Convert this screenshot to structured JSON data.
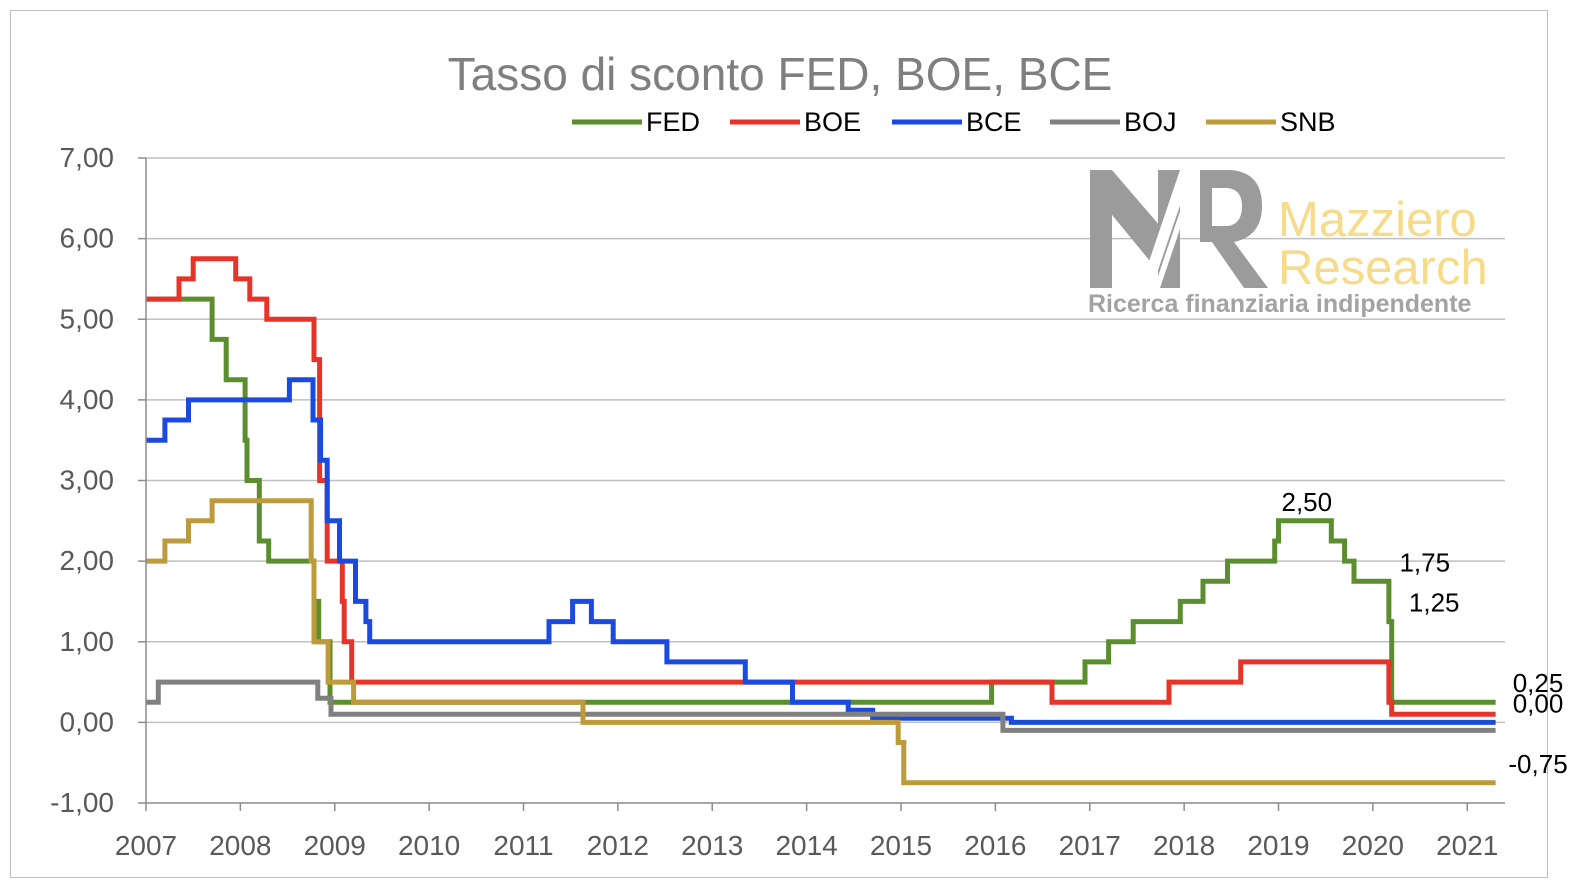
{
  "chart_data": {
    "type": "line",
    "step": true,
    "title": "Tasso di sconto FED, BOE, BCE",
    "xlabel": "",
    "ylabel": "",
    "xlim": [
      2007.0,
      2021.4
    ],
    "ylim": [
      -1.0,
      7.0
    ],
    "ytick_values": [
      -1,
      0,
      1,
      2,
      3,
      4,
      5,
      6,
      7
    ],
    "ytick_labels": [
      "-1,00",
      "0,00",
      "1,00",
      "2,00",
      "3,00",
      "4,00",
      "5,00",
      "6,00",
      "7,00"
    ],
    "xtick_values": [
      2007,
      2008,
      2009,
      2010,
      2011,
      2012,
      2013,
      2014,
      2015,
      2016,
      2017,
      2018,
      2019,
      2020,
      2021
    ],
    "xtick_labels": [
      "2007",
      "2008",
      "2009",
      "2010",
      "2011",
      "2012",
      "2013",
      "2014",
      "2015",
      "2016",
      "2017",
      "2018",
      "2019",
      "2020",
      "2021"
    ],
    "grid": true,
    "legend_position": "top",
    "series": [
      {
        "name": "FED",
        "color": "#5b8e2e",
        "points": [
          [
            2007.0,
            5.25
          ],
          [
            2007.7,
            4.75
          ],
          [
            2007.85,
            4.25
          ],
          [
            2008.05,
            3.5
          ],
          [
            2008.07,
            3.0
          ],
          [
            2008.2,
            2.25
          ],
          [
            2008.3,
            2.0
          ],
          [
            2008.78,
            1.5
          ],
          [
            2008.83,
            1.0
          ],
          [
            2008.95,
            0.25
          ],
          [
            2015.96,
            0.5
          ],
          [
            2016.95,
            0.75
          ],
          [
            2017.2,
            1.0
          ],
          [
            2017.46,
            1.25
          ],
          [
            2017.96,
            1.5
          ],
          [
            2018.2,
            1.75
          ],
          [
            2018.46,
            2.0
          ],
          [
            2018.96,
            2.25
          ],
          [
            2019.0,
            2.5
          ],
          [
            2019.56,
            2.25
          ],
          [
            2019.7,
            2.0
          ],
          [
            2019.8,
            1.75
          ],
          [
            2020.17,
            1.25
          ],
          [
            2020.2,
            0.25
          ],
          [
            2021.3,
            0.25
          ]
        ]
      },
      {
        "name": "BOE",
        "color": "#e5342a",
        "points": [
          [
            2007.0,
            5.25
          ],
          [
            2007.35,
            5.5
          ],
          [
            2007.5,
            5.75
          ],
          [
            2007.95,
            5.5
          ],
          [
            2008.1,
            5.25
          ],
          [
            2008.28,
            5.0
          ],
          [
            2008.78,
            4.5
          ],
          [
            2008.84,
            3.0
          ],
          [
            2008.92,
            2.0
          ],
          [
            2009.08,
            1.5
          ],
          [
            2009.1,
            1.0
          ],
          [
            2009.18,
            0.5
          ],
          [
            2016.6,
            0.25
          ],
          [
            2017.84,
            0.5
          ],
          [
            2018.6,
            0.75
          ],
          [
            2020.17,
            0.25
          ],
          [
            2020.2,
            0.1
          ],
          [
            2021.3,
            0.1
          ]
        ]
      },
      {
        "name": "BCE",
        "color": "#1b4ae0",
        "points": [
          [
            2007.0,
            3.5
          ],
          [
            2007.2,
            3.75
          ],
          [
            2007.45,
            4.0
          ],
          [
            2008.52,
            4.25
          ],
          [
            2008.77,
            3.75
          ],
          [
            2008.85,
            3.25
          ],
          [
            2008.92,
            2.5
          ],
          [
            2009.05,
            2.0
          ],
          [
            2009.22,
            1.5
          ],
          [
            2009.33,
            1.25
          ],
          [
            2009.37,
            1.0
          ],
          [
            2011.27,
            1.25
          ],
          [
            2011.52,
            1.5
          ],
          [
            2011.72,
            1.25
          ],
          [
            2011.95,
            1.0
          ],
          [
            2012.52,
            0.75
          ],
          [
            2013.35,
            0.5
          ],
          [
            2013.85,
            0.25
          ],
          [
            2014.44,
            0.15
          ],
          [
            2014.7,
            0.05
          ],
          [
            2016.17,
            0.0
          ],
          [
            2021.3,
            0.0
          ]
        ]
      },
      {
        "name": "BOJ",
        "color": "#808080",
        "points": [
          [
            2007.0,
            0.25
          ],
          [
            2007.13,
            0.5
          ],
          [
            2008.82,
            0.3
          ],
          [
            2008.96,
            0.1
          ],
          [
            2016.08,
            -0.1
          ],
          [
            2021.3,
            -0.1
          ]
        ]
      },
      {
        "name": "SNB",
        "color": "#bd9a3a",
        "points": [
          [
            2007.0,
            2.0
          ],
          [
            2007.2,
            2.25
          ],
          [
            2007.45,
            2.5
          ],
          [
            2007.7,
            2.75
          ],
          [
            2008.75,
            2.0
          ],
          [
            2008.78,
            1.0
          ],
          [
            2008.93,
            0.5
          ],
          [
            2009.2,
            0.25
          ],
          [
            2011.63,
            0.0
          ],
          [
            2014.97,
            -0.25
          ],
          [
            2015.03,
            -0.75
          ],
          [
            2021.3,
            -0.75
          ]
        ]
      }
    ],
    "annotations": [
      {
        "text": "2,50",
        "x": 2019.3,
        "y": 2.5
      },
      {
        "text": "1,75",
        "x": 2020.55,
        "y": 1.75
      },
      {
        "text": "1,25",
        "x": 2020.65,
        "y": 1.25
      },
      {
        "text": "0,25",
        "x": 2021.75,
        "y": 0.25
      },
      {
        "text": "0,00",
        "x": 2021.75,
        "y": 0.0
      },
      {
        "text": "-0,75",
        "x": 2021.75,
        "y": -0.75
      }
    ],
    "watermark": {
      "logo_letters": "MR",
      "line1": "Mazziero",
      "line2": "Research",
      "tagline": "Ricerca finanziaria indipendente"
    }
  }
}
